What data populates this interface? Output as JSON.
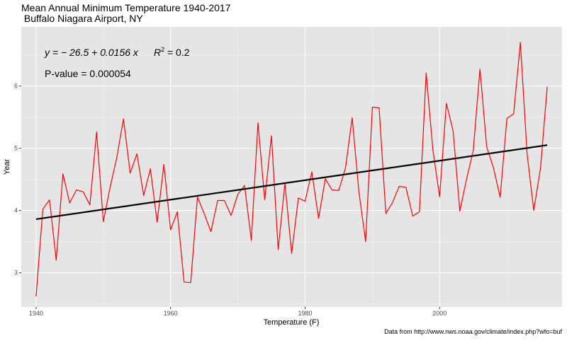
{
  "chart_data": {
    "type": "line",
    "title": "Mean Annual Minimum Temperature 1940-2017",
    "subtitle": " Buffalo Niagara Airport, NY",
    "xlabel": "Temperature (F)",
    "ylabel": "Year",
    "caption": "Data from http://www.nws.noaa.gov/climate/index.php?wfo=buf",
    "xlim": [
      1937.8,
      2018.2
    ],
    "ylim": [
      2.45,
      6.95
    ],
    "x_ticks": [
      1940,
      1960,
      1980,
      2000
    ],
    "y_ticks": [
      3,
      4,
      5,
      6
    ],
    "grid": true,
    "background": "#e5e5e5",
    "series": [
      {
        "color": "#ff0000",
        "x": [
          1940,
          1941,
          1942,
          1943,
          1944,
          1945,
          1946,
          1947,
          1948,
          1949,
          1950,
          1951,
          1952,
          1953,
          1954,
          1955,
          1956,
          1957,
          1958,
          1959,
          1960,
          1961,
          1962,
          1963,
          1964,
          1965,
          1966,
          1967,
          1968,
          1969,
          1970,
          1971,
          1972,
          1973,
          1974,
          1975,
          1976,
          1977,
          1978,
          1979,
          1980,
          1981,
          1982,
          1983,
          1984,
          1985,
          1986,
          1987,
          1988,
          1989,
          1990,
          1991,
          1992,
          1993,
          1994,
          1995,
          1996,
          1997,
          1998,
          1999,
          2000,
          2001,
          2002,
          2003,
          2004,
          2005,
          2006,
          2007,
          2008,
          2009,
          2010,
          2011,
          2012,
          2013,
          2014,
          2015,
          2016
        ],
        "y": [
          2.62,
          4.02,
          4.17,
          3.2,
          4.59,
          4.12,
          4.33,
          4.3,
          4.09,
          5.26,
          3.82,
          4.37,
          4.85,
          5.47,
          4.6,
          4.91,
          4.24,
          4.67,
          3.81,
          4.74,
          3.69,
          3.98,
          2.85,
          2.84,
          4.22,
          3.95,
          3.66,
          4.16,
          4.16,
          3.92,
          4.26,
          4.4,
          3.52,
          5.41,
          4.17,
          5.2,
          3.37,
          4.44,
          3.31,
          4.2,
          4.15,
          4.62,
          3.87,
          4.51,
          4.33,
          4.32,
          4.68,
          5.49,
          4.3,
          3.5,
          5.66,
          5.65,
          3.95,
          4.13,
          4.39,
          4.37,
          3.91,
          3.98,
          6.21,
          4.97,
          4.22,
          5.72,
          5.28,
          3.99,
          4.5,
          4.96,
          6.27,
          5.02,
          4.69,
          4.21,
          5.48,
          5.55,
          6.7,
          4.91,
          4.0,
          4.68,
          5.99
        ]
      }
    ],
    "trend_line": {
      "color": "#000000",
      "slope": 0.0156,
      "intercept": -26.5,
      "x": [
        1940,
        2016
      ],
      "y": [
        3.86,
        5.05
      ]
    },
    "annotations": {
      "equation_prefix": "y = − 26.5 + 0.0156 x",
      "r2_symbol": "R",
      "r2_exp": "2",
      "r2_value": " = 0.2",
      "pvalue": "P-value = 0.000054"
    }
  }
}
